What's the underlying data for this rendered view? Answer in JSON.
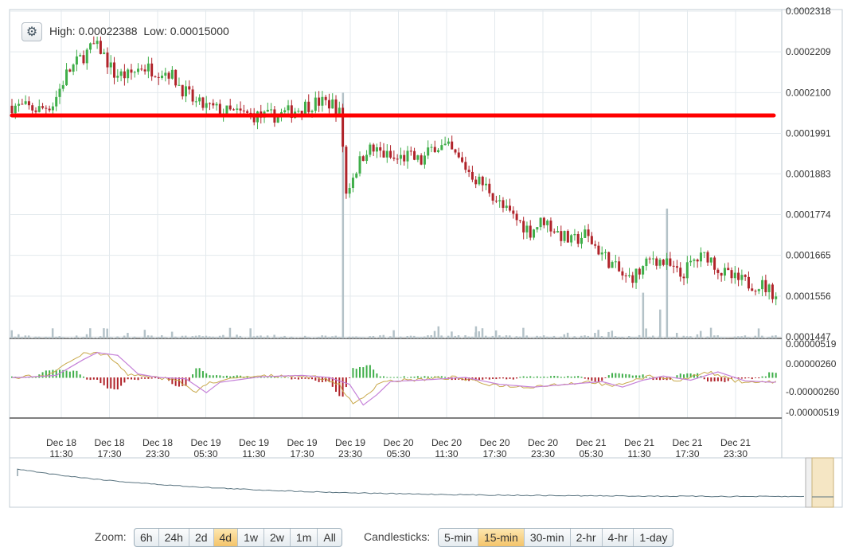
{
  "info": {
    "high_label": "High:",
    "high_value": "0.00022388",
    "low_label": "Low:",
    "low_value": "0.00015000"
  },
  "colors": {
    "up": "#3fae49",
    "down": "#b0232a",
    "volume": "#b4c2c8",
    "support_line": "#ff0000",
    "macd_line": "#c8a84a",
    "signal_line": "#c580d8",
    "navigator": "#5a7480",
    "grid": "#e3e9ed",
    "axis_border": "#8a9aa3"
  },
  "zoom": {
    "label": "Zoom:",
    "options": [
      "6h",
      "24h",
      "2d",
      "4d",
      "1w",
      "2w",
      "1m",
      "All"
    ],
    "selected": "4d"
  },
  "candlesticks": {
    "label": "Candlesticks:",
    "options": [
      "5-min",
      "15-min",
      "30-min",
      "2-hr",
      "4-hr",
      "1-day"
    ],
    "selected": "15-min"
  },
  "chart_data": {
    "type": "candlestick",
    "price_axis_ticks": [
      "0.0002318",
      "0.0002209",
      "0.0002100",
      "0.0001991",
      "0.0001883",
      "0.0001774",
      "0.0001665",
      "0.0001556",
      "0.0001447"
    ],
    "price_range": [
      0.0001447,
      0.0002318
    ],
    "macd_axis_ticks": [
      "0.00000519",
      "0.00000260",
      "-0.00000260",
      "-0.00000519"
    ],
    "macd_range": [
      -5.19e-06,
      5.19e-06
    ],
    "x_tick_labels": [
      [
        "Dec 18",
        "11:30"
      ],
      [
        "Dec 18",
        "17:30"
      ],
      [
        "Dec 18",
        "23:30"
      ],
      [
        "Dec 19",
        "05:30"
      ],
      [
        "Dec 19",
        "11:30"
      ],
      [
        "Dec 19",
        "17:30"
      ],
      [
        "Dec 19",
        "23:30"
      ],
      [
        "Dec 20",
        "05:30"
      ],
      [
        "Dec 20",
        "11:30"
      ],
      [
        "Dec 20",
        "17:30"
      ],
      [
        "Dec 20",
        "23:30"
      ],
      [
        "Dec 21",
        "05:30"
      ],
      [
        "Dec 21",
        "11:30"
      ],
      [
        "Dec 21",
        "17:30"
      ],
      [
        "Dec 21",
        "23:30"
      ]
    ],
    "support_line_value": 0.0002039,
    "price_path": [
      [
        0,
        0.0002065
      ],
      [
        4,
        0.000206
      ],
      [
        8,
        0.0002055
      ],
      [
        12,
        0.000207
      ],
      [
        16,
        0.000215
      ],
      [
        20,
        0.000219
      ],
      [
        24,
        0.0002225
      ],
      [
        26,
        0.0002215
      ],
      [
        30,
        0.000215
      ],
      [
        34,
        0.0002145
      ],
      [
        38,
        0.000217
      ],
      [
        42,
        0.000216
      ],
      [
        46,
        0.0002155
      ],
      [
        50,
        0.000211
      ],
      [
        54,
        0.000207
      ],
      [
        58,
        0.000206
      ],
      [
        62,
        0.000205
      ],
      [
        66,
        0.0002045
      ],
      [
        70,
        0.000204
      ],
      [
        74,
        0.0002035
      ],
      [
        78,
        0.000204
      ],
      [
        82,
        0.000205
      ],
      [
        86,
        0.0002065
      ],
      [
        90,
        0.0002075
      ],
      [
        94,
        0.000207
      ],
      [
        96,
        0.0002045
      ],
      [
        97,
        0.000196
      ],
      [
        98,
        0.000183
      ],
      [
        100,
        0.000188
      ],
      [
        104,
        0.000195
      ],
      [
        108,
        0.000194
      ],
      [
        112,
        0.000192
      ],
      [
        116,
        0.000193
      ],
      [
        120,
        0.0001915
      ],
      [
        124,
        0.000196
      ],
      [
        128,
        0.000195
      ],
      [
        132,
        0.000191
      ],
      [
        136,
        0.000187
      ],
      [
        140,
        0.000184
      ],
      [
        144,
        0.000179
      ],
      [
        148,
        0.000176
      ],
      [
        152,
        0.000173
      ],
      [
        156,
        0.000176
      ],
      [
        160,
        0.0001725
      ],
      [
        164,
        0.00017
      ],
      [
        168,
        0.000172
      ],
      [
        172,
        0.000168
      ],
      [
        176,
        0.000164
      ],
      [
        180,
        0.00016
      ],
      [
        184,
        0.000162
      ],
      [
        188,
        0.000166
      ],
      [
        192,
        0.000164
      ],
      [
        196,
        0.000161
      ],
      [
        200,
        0.000165
      ],
      [
        204,
        0.0001665
      ],
      [
        208,
        0.000162
      ],
      [
        212,
        0.00016
      ],
      [
        216,
        0.000159
      ],
      [
        220,
        0.0001585
      ],
      [
        224,
        0.000156
      ]
    ],
    "volume_spikes": [
      [
        97,
        0.00021
      ],
      [
        125,
        0.0001475
      ],
      [
        136,
        0.0001475
      ],
      [
        192,
        0.000179
      ],
      [
        185,
        0.0001565
      ],
      [
        190,
        0.000152
      ]
    ],
    "macd_signal_shape": [
      [
        0,
        0.0
      ],
      [
        10,
        0.3
      ],
      [
        18,
        2.6
      ],
      [
        22,
        3.6
      ],
      [
        28,
        3.2
      ],
      [
        34,
        0.5
      ],
      [
        40,
        0.0
      ],
      [
        48,
        -0.2
      ],
      [
        54,
        -2.2
      ],
      [
        58,
        -0.7
      ],
      [
        70,
        0.1
      ],
      [
        82,
        0.3
      ],
      [
        90,
        0.0
      ],
      [
        96,
        -1.0
      ],
      [
        100,
        -4.0
      ],
      [
        104,
        -2.5
      ],
      [
        108,
        -0.6
      ],
      [
        120,
        -0.3
      ],
      [
        130,
        0.0
      ],
      [
        140,
        -1.0
      ],
      [
        150,
        -1.4
      ],
      [
        160,
        -1.0
      ],
      [
        170,
        -0.6
      ],
      [
        176,
        -1.4
      ],
      [
        182,
        -0.4
      ],
      [
        188,
        0.2
      ],
      [
        196,
        -0.4
      ],
      [
        204,
        0.8
      ],
      [
        212,
        -0.5
      ],
      [
        220,
        -0.7
      ],
      [
        224,
        -0.6
      ]
    ]
  }
}
